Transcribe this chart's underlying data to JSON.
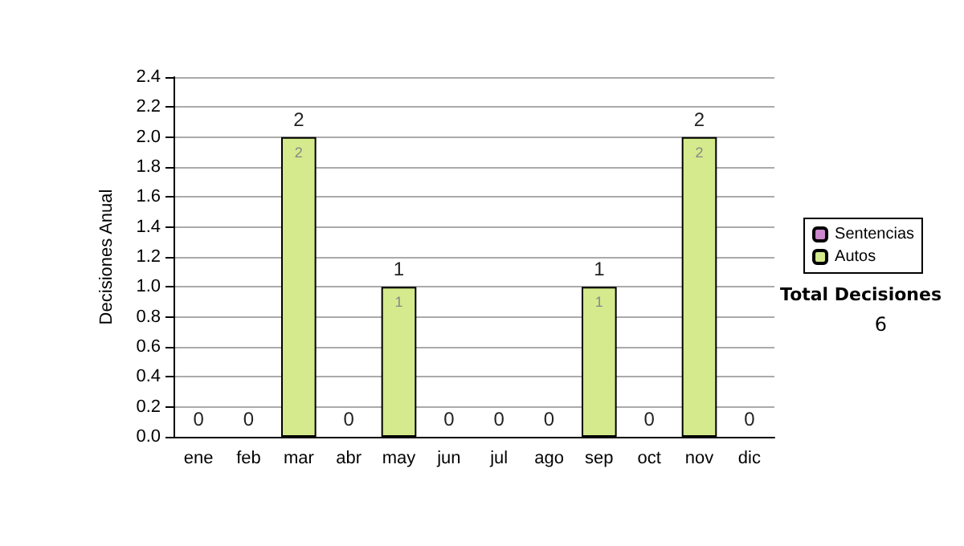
{
  "chart_data": {
    "type": "bar",
    "ylabel": "Decisiones Anual",
    "categories": [
      "ene",
      "feb",
      "mar",
      "abr",
      "may",
      "jun",
      "jul",
      "ago",
      "sep",
      "oct",
      "nov",
      "dic"
    ],
    "stacked": true,
    "series": [
      {
        "name": "Sentencias",
        "color": "#cc88cc",
        "values": [
          0,
          0,
          0,
          0,
          0,
          0,
          0,
          0,
          0,
          0,
          0,
          0
        ]
      },
      {
        "name": "Autos",
        "color": "#d4ea8c",
        "values": [
          0,
          0,
          2,
          0,
          1,
          0,
          0,
          0,
          1,
          0,
          2,
          0
        ],
        "value_labels": [
          null,
          null,
          "2",
          null,
          "1",
          null,
          null,
          null,
          "1",
          null,
          "2",
          null
        ]
      }
    ],
    "totals": [
      "0",
      "0",
      "2",
      "0",
      "1",
      "0",
      "0",
      "0",
      "1",
      "0",
      "2",
      "0"
    ],
    "ylim": [
      0,
      2.4
    ],
    "yticks": [
      {
        "value": 0,
        "label": "0.0"
      },
      {
        "value": 0.2,
        "label": "0.2"
      },
      {
        "value": 0.4,
        "label": "0.4"
      },
      {
        "value": 0.6,
        "label": "0.6"
      },
      {
        "value": 0.8,
        "label": "0.8"
      },
      {
        "value": 1,
        "label": "1.0"
      },
      {
        "value": 1.2,
        "label": "1.2"
      },
      {
        "value": 1.4,
        "label": "1.4"
      },
      {
        "value": 1.6,
        "label": "1.6"
      },
      {
        "value": 1.8,
        "label": "1.8"
      },
      {
        "value": 2,
        "label": "2.0"
      },
      {
        "value": 2.2,
        "label": "2.2"
      },
      {
        "value": 2.4,
        "label": "2.4"
      }
    ],
    "grid": "y",
    "legend": "right",
    "annotations": [
      "Total Decisiones",
      "6"
    ]
  }
}
